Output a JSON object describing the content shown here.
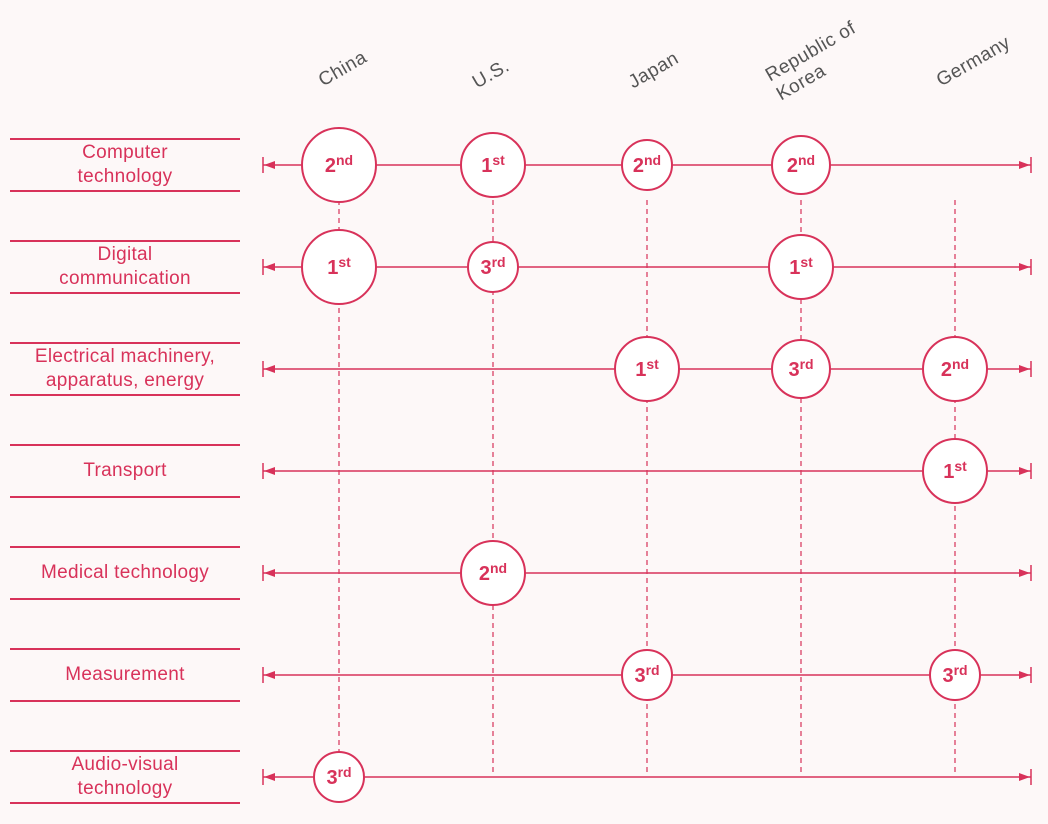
{
  "colors": {
    "accent": "#d8325a",
    "country_text": "#555555",
    "background": "#fdf8f8"
  },
  "countries": [
    "China",
    "U.S.",
    "Japan",
    "Republic of\nKorea",
    "Germany"
  ],
  "categories": [
    "Computer\ntechnology",
    "Digital\ncommunication",
    "Electrical machinery,\napparatus, energy",
    "Transport",
    "Medical technology",
    "Measurement",
    "Audio-visual\ntechnology"
  ],
  "rankings": [
    {
      "category": 0,
      "country": 0,
      "rank": "2",
      "suffix": "nd",
      "size": "large"
    },
    {
      "category": 0,
      "country": 1,
      "rank": "1",
      "suffix": "st",
      "size": "medium"
    },
    {
      "category": 0,
      "country": 2,
      "rank": "2",
      "suffix": "nd",
      "size": "small"
    },
    {
      "category": 0,
      "country": 3,
      "rank": "2",
      "suffix": "nd",
      "size": "medium-small"
    },
    {
      "category": 1,
      "country": 0,
      "rank": "1",
      "suffix": "st",
      "size": "large"
    },
    {
      "category": 1,
      "country": 1,
      "rank": "3",
      "suffix": "rd",
      "size": "small"
    },
    {
      "category": 1,
      "country": 3,
      "rank": "1",
      "suffix": "st",
      "size": "medium"
    },
    {
      "category": 2,
      "country": 2,
      "rank": "1",
      "suffix": "st",
      "size": "medium"
    },
    {
      "category": 2,
      "country": 3,
      "rank": "3",
      "suffix": "rd",
      "size": "medium-small"
    },
    {
      "category": 2,
      "country": 4,
      "rank": "2",
      "suffix": "nd",
      "size": "medium"
    },
    {
      "category": 3,
      "country": 4,
      "rank": "1",
      "suffix": "st",
      "size": "medium"
    },
    {
      "category": 4,
      "country": 1,
      "rank": "2",
      "suffix": "nd",
      "size": "medium"
    },
    {
      "category": 5,
      "country": 2,
      "rank": "3",
      "suffix": "rd",
      "size": "small"
    },
    {
      "category": 5,
      "country": 4,
      "rank": "3",
      "suffix": "rd",
      "size": "small"
    },
    {
      "category": 6,
      "country": 0,
      "rank": "3",
      "suffix": "rd",
      "size": "small"
    }
  ]
}
